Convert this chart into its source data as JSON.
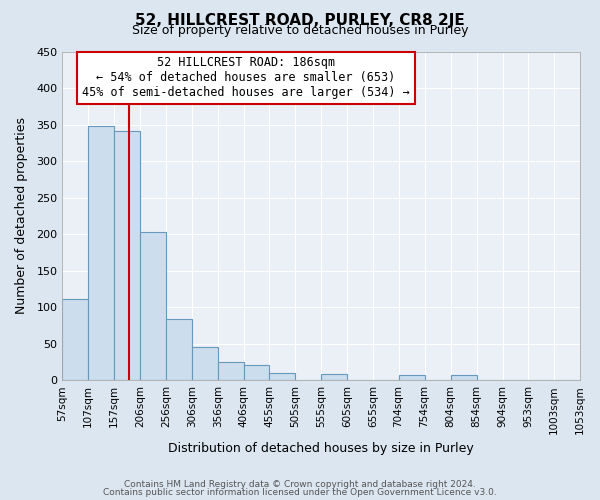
{
  "title": "52, HILLCREST ROAD, PURLEY, CR8 2JE",
  "subtitle": "Size of property relative to detached houses in Purley",
  "xlabel": "Distribution of detached houses by size in Purley",
  "ylabel": "Number of detached properties",
  "bar_values": [
    111,
    348,
    341,
    203,
    84,
    46,
    25,
    21,
    10,
    0,
    8,
    0,
    0,
    7,
    0,
    7,
    0,
    0,
    0,
    0,
    0
  ],
  "bin_labels": [
    "57sqm",
    "107sqm",
    "157sqm",
    "206sqm",
    "256sqm",
    "306sqm",
    "356sqm",
    "406sqm",
    "455sqm",
    "505sqm",
    "555sqm",
    "605sqm",
    "655sqm",
    "704sqm",
    "754sqm",
    "804sqm",
    "854sqm",
    "904sqm",
    "953sqm",
    "1003sqm",
    "1053sqm"
  ],
  "bar_color": "#ccdded",
  "bar_edge_color": "#6699bb",
  "vline_x": 186,
  "vline_color": "#cc0000",
  "annotation_title": "52 HILLCREST ROAD: 186sqm",
  "annotation_line1": "← 54% of detached houses are smaller (653)",
  "annotation_line2": "45% of semi-detached houses are larger (534) →",
  "annotation_box_color": "#cc0000",
  "ylim": [
    0,
    450
  ],
  "yticks": [
    0,
    50,
    100,
    150,
    200,
    250,
    300,
    350,
    400,
    450
  ],
  "footer_line1": "Contains HM Land Registry data © Crown copyright and database right 2024.",
  "footer_line2": "Contains public sector information licensed under the Open Government Licence v3.0.",
  "bin_edges": [
    57,
    107,
    157,
    206,
    256,
    306,
    356,
    406,
    455,
    505,
    555,
    605,
    655,
    704,
    754,
    804,
    854,
    904,
    953,
    1003,
    1053
  ],
  "background_color": "#dce6f0",
  "plot_bg_color": "#eaf0f6"
}
